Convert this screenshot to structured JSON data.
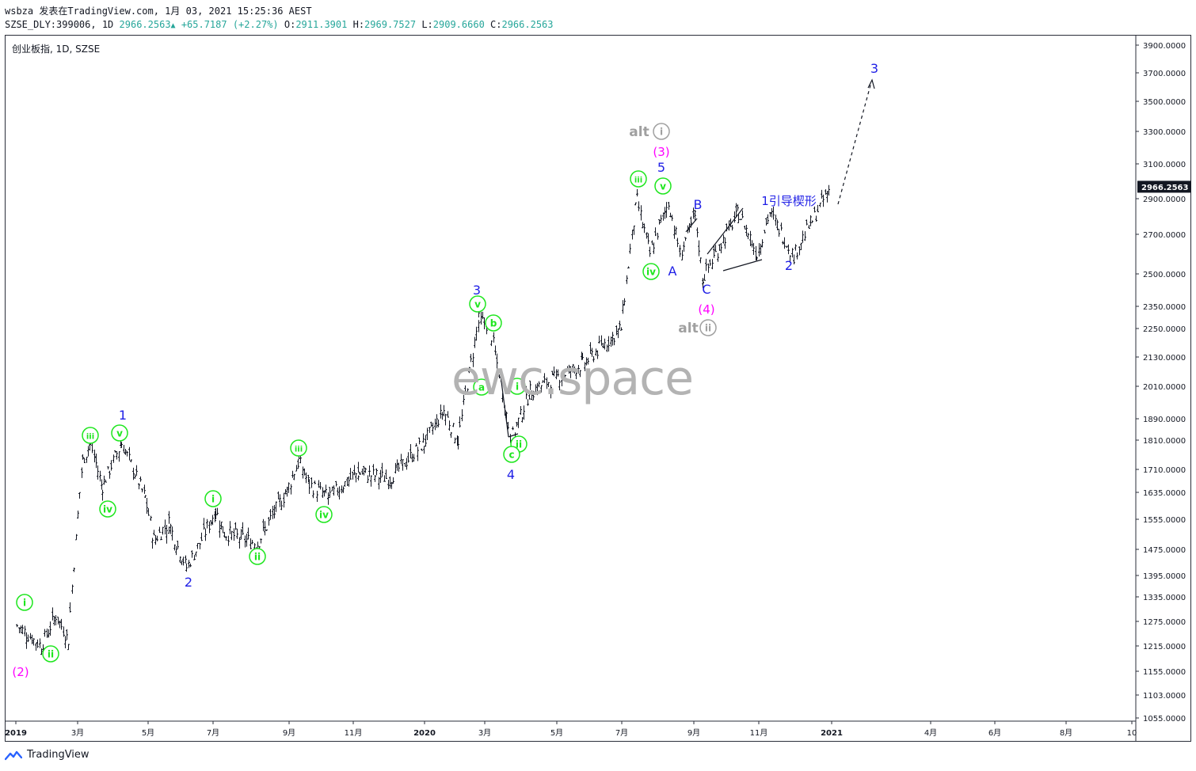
{
  "header": {
    "user": "wsbza",
    "published_text": "发表在TradingView.com, 1月 03, 2021 15:25:36 AEST",
    "symbol_line": "SZSE_DLY:399006, 1D",
    "last": "2966.2563",
    "change_arrow": "▲",
    "change": "+65.7187 (+2.27%)",
    "o_label": "O:",
    "o_value": "2911.3901",
    "h_label": "H:",
    "h_value": "2969.7527",
    "l_label": "L:",
    "l_value": "2909.6660",
    "c_label": "C:",
    "c_value": "2966.2563"
  },
  "chart_title": "创业板指, 1D, SZSE",
  "watermark": "ewc.space",
  "footer": {
    "logo_text": "TradingView",
    "logo_icon": "tradingview-logo-icon"
  },
  "colors": {
    "bars": "#131722",
    "wave_blue": "#1f1fe6",
    "wave_green": "#1ee61e",
    "wave_magenta": "#ff00ff",
    "alt_gray": "#a0a0a0",
    "price_tag_bg": "#131722"
  },
  "chart_data": {
    "type": "ohlc",
    "symbol": "创业板指",
    "interval": "1D",
    "exchange": "SZSE",
    "last_price": "2966.2563",
    "y_ticks": [
      "3900.0000",
      "3700.0000",
      "3500.0000",
      "3300.0000",
      "3100.0000",
      "2900.0000",
      "2700.0000",
      "2500.0000",
      "2350.0000",
      "2250.0000",
      "2130.0000",
      "2010.0000",
      "1890.0000",
      "1810.0000",
      "1710.0000",
      "1635.0000",
      "1555.0000",
      "1475.0000",
      "1395.0000",
      "1335.0000",
      "1275.0000",
      "1215.0000",
      "1155.0000",
      "1103.0000",
      "1055.0000"
    ],
    "x_ticks": [
      "2019",
      "3月",
      "5月",
      "7月",
      "9月",
      "11月",
      "2020",
      "3月",
      "5月",
      "7月",
      "9月",
      "11月",
      "2021",
      "4月",
      "6月",
      "8月",
      "10"
    ],
    "price_path": [
      [
        "2019-01-02",
        1265
      ],
      [
        "2019-01-25",
        1215
      ],
      [
        "2019-02-08",
        1290
      ],
      [
        "2019-02-20",
        1230
      ],
      [
        "2019-03-05",
        1740
      ],
      [
        "2019-03-12",
        1800
      ],
      [
        "2019-03-22",
        1655
      ],
      [
        "2019-04-08",
        1800
      ],
      [
        "2019-04-28",
        1620
      ],
      [
        "2019-05-06",
        1500
      ],
      [
        "2019-05-20",
        1545
      ],
      [
        "2019-06-06",
        1420
      ],
      [
        "2019-07-03",
        1580
      ],
      [
        "2019-07-10",
        1520
      ],
      [
        "2019-08-06",
        1490
      ],
      [
        "2019-08-30",
        1640
      ],
      [
        "2019-09-10",
        1740
      ],
      [
        "2019-09-20",
        1660
      ],
      [
        "2019-10-08",
        1620
      ],
      [
        "2019-11-05",
        1700
      ],
      [
        "2019-12-02",
        1680
      ],
      [
        "2019-12-31",
        1800
      ],
      [
        "2020-01-20",
        1920
      ],
      [
        "2020-02-03",
        1810
      ],
      [
        "2020-02-24",
        2290
      ],
      [
        "2020-03-05",
        2260
      ],
      [
        "2020-03-23",
        1810
      ],
      [
        "2020-04-08",
        1990
      ],
      [
        "2020-05-25",
        2100
      ],
      [
        "2020-06-30",
        2250
      ],
      [
        "2020-07-14",
        2890
      ],
      [
        "2020-07-25",
        2600
      ],
      [
        "2020-08-10",
        2880
      ],
      [
        "2020-08-20",
        2600
      ],
      [
        "2020-09-02",
        2800
      ],
      [
        "2020-09-09",
        2480
      ],
      [
        "2020-10-13",
        2820
      ],
      [
        "2020-10-30",
        2600
      ],
      [
        "2020-11-10",
        2820
      ],
      [
        "2020-11-30",
        2590
      ],
      [
        "2020-12-31",
        2966.2563
      ]
    ],
    "wave_labels": [
      {
        "text": "(2)",
        "color": "magenta"
      },
      {
        "text": "i",
        "color": "green",
        "circled": true
      },
      {
        "text": "ii",
        "color": "green",
        "circled": true
      },
      {
        "text": "iii",
        "color": "green",
        "circled": true
      },
      {
        "text": "iv",
        "color": "green",
        "circled": true
      },
      {
        "text": "v",
        "color": "green",
        "circled": true
      },
      {
        "text": "1",
        "color": "blue"
      },
      {
        "text": "2",
        "color": "blue"
      },
      {
        "text": "i",
        "color": "green",
        "circled": true
      },
      {
        "text": "ii",
        "color": "green",
        "circled": true
      },
      {
        "text": "iii",
        "color": "green",
        "circled": true
      },
      {
        "text": "iv",
        "color": "green",
        "circled": true
      },
      {
        "text": "3",
        "color": "blue"
      },
      {
        "text": "v",
        "color": "green",
        "circled": true
      },
      {
        "text": "b",
        "color": "green",
        "circled": true
      },
      {
        "text": "a",
        "color": "green",
        "circled": true
      },
      {
        "text": "i",
        "color": "green",
        "circled": true
      },
      {
        "text": "ii",
        "color": "green",
        "circled": true
      },
      {
        "text": "c",
        "color": "green",
        "circled": true
      },
      {
        "text": "4",
        "color": "blue"
      },
      {
        "text": "iii",
        "color": "green",
        "circled": true
      },
      {
        "text": "iv",
        "color": "green",
        "circled": true
      },
      {
        "text": "v",
        "color": "green",
        "circled": true
      },
      {
        "text": "5",
        "color": "blue"
      },
      {
        "text": "(3)",
        "color": "magenta"
      },
      {
        "text": "alt",
        "color": "gray"
      },
      {
        "text": "i",
        "color": "gray",
        "circled": true
      },
      {
        "text": "A",
        "color": "blue"
      },
      {
        "text": "B",
        "color": "blue"
      },
      {
        "text": "C",
        "color": "blue"
      },
      {
        "text": "(4)",
        "color": "magenta"
      },
      {
        "text": "alt",
        "color": "gray"
      },
      {
        "text": "ii",
        "color": "gray",
        "circled": true
      },
      {
        "text": "1引导楔形",
        "color": "blue"
      },
      {
        "text": "2",
        "color": "blue"
      },
      {
        "text": "3",
        "color": "blue"
      }
    ]
  }
}
